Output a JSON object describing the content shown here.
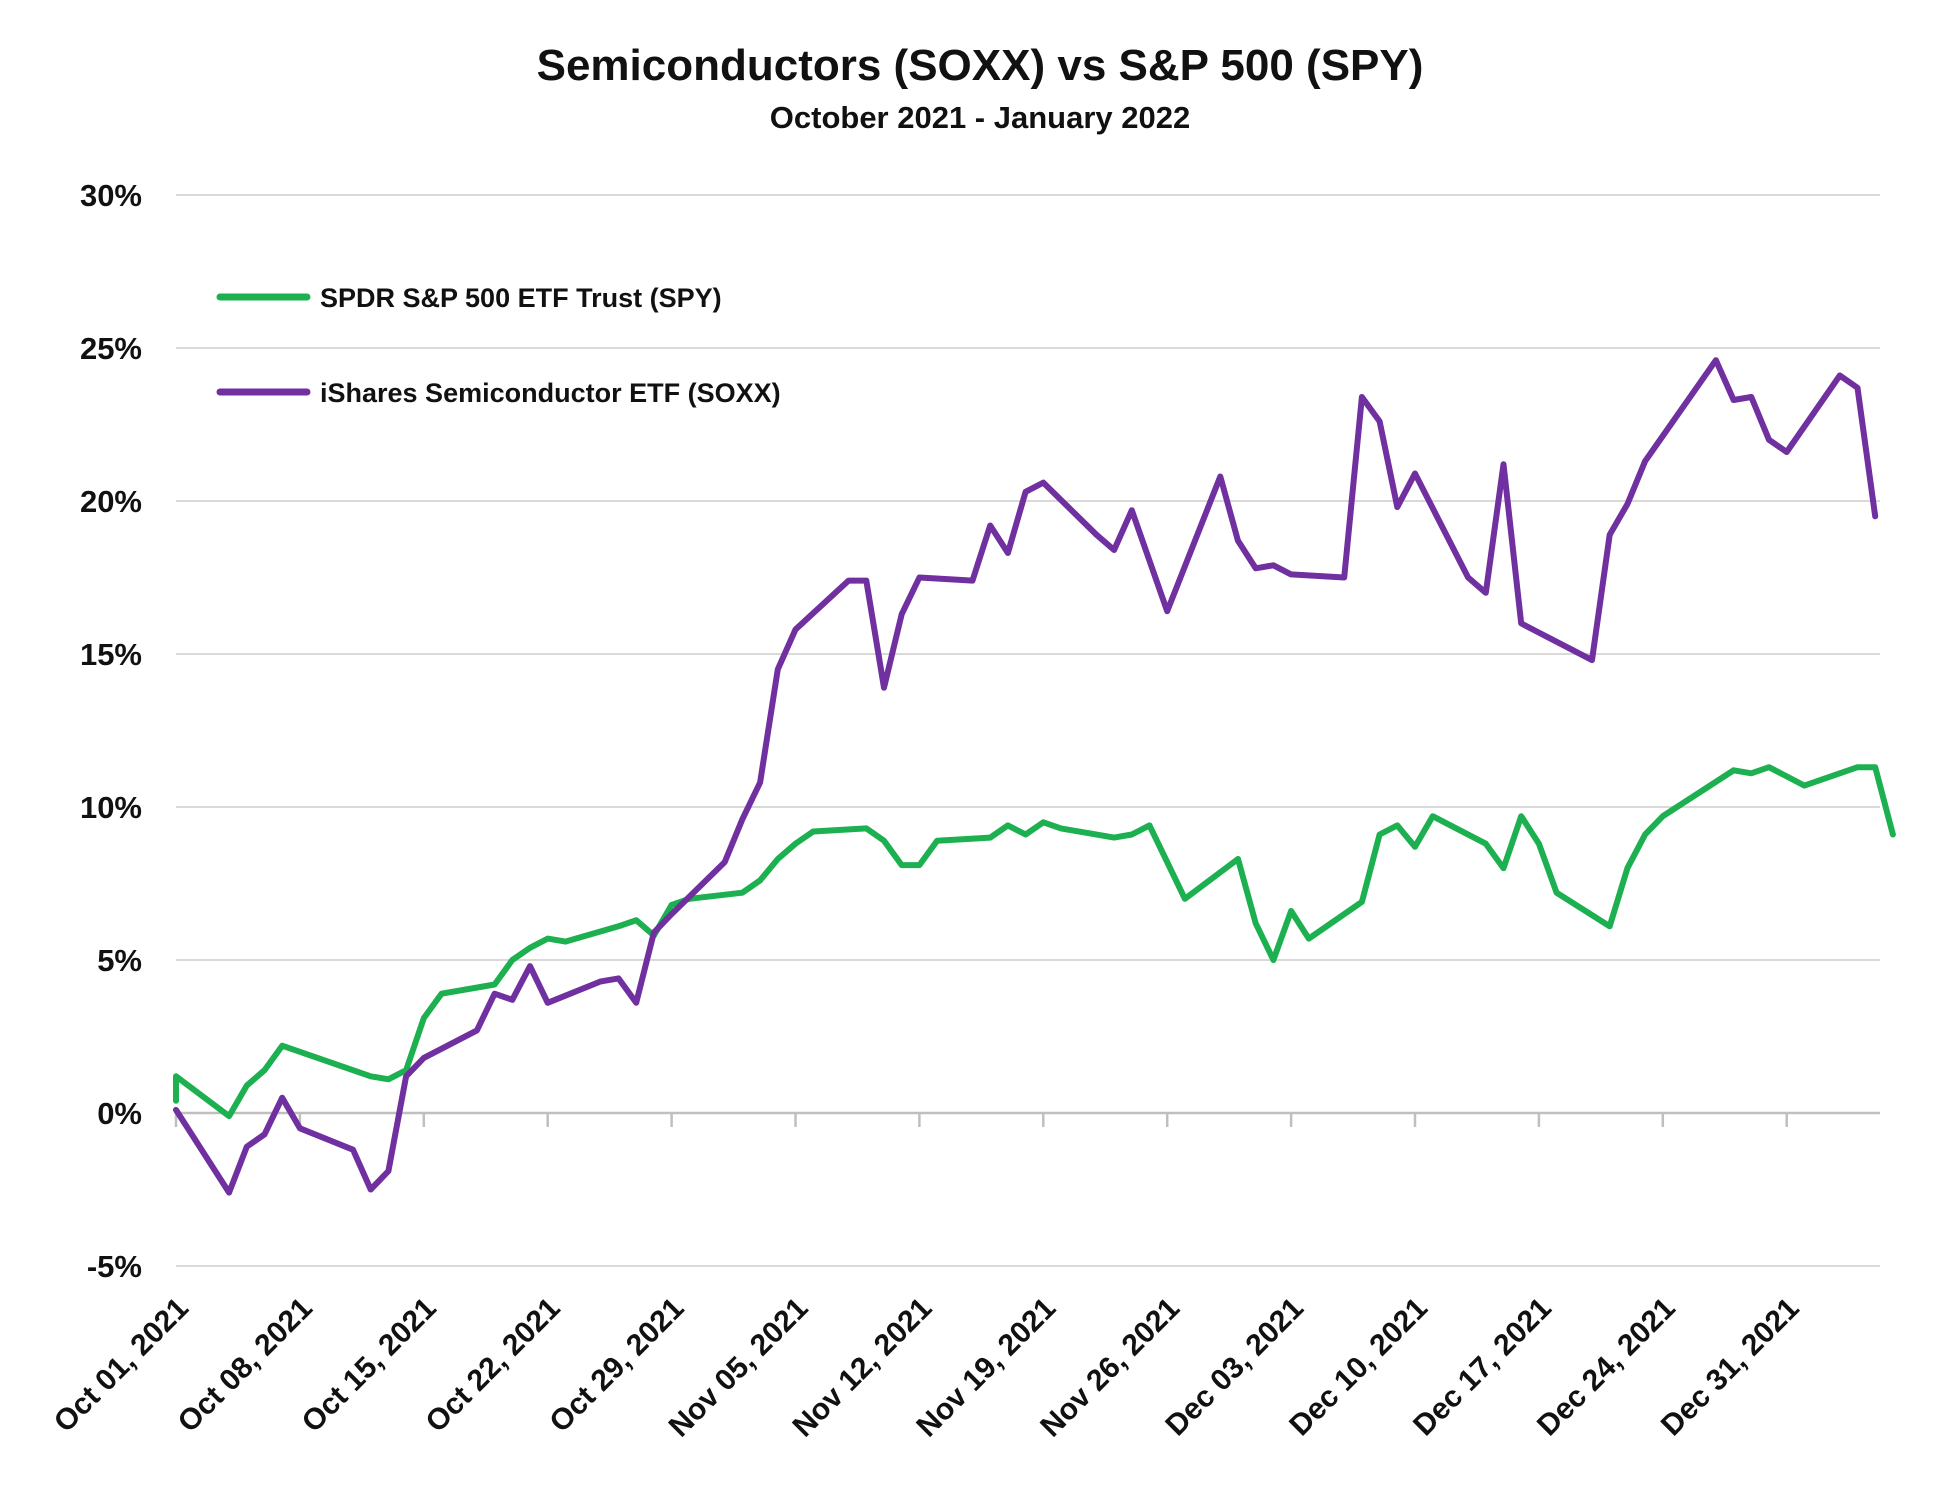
{
  "chart_data": {
    "type": "line",
    "title": "Semiconductors (SOXX) vs S&P 500 (SPY)",
    "subtitle": "October 2021 - January 2022",
    "xlabel": "",
    "ylabel": "",
    "ylim": [
      -5,
      30
    ],
    "yticks": [
      -5,
      0,
      5,
      10,
      15,
      20,
      25,
      30
    ],
    "ytick_labels": [
      "-5%",
      "0%",
      "5%",
      "10%",
      "15%",
      "20%",
      "25%",
      "30%"
    ],
    "x_range": [
      "2021-10-01",
      "2022-01-05"
    ],
    "xticks": [
      "2021-10-01",
      "2021-10-08",
      "2021-10-15",
      "2021-10-22",
      "2021-10-29",
      "2021-11-05",
      "2021-11-12",
      "2021-11-19",
      "2021-11-26",
      "2021-12-03",
      "2021-12-10",
      "2021-12-17",
      "2021-12-24",
      "2021-12-31"
    ],
    "xtick_labels": [
      "Oct 01, 2021",
      "Oct 08, 2021",
      "Oct 15, 2021",
      "Oct 22, 2021",
      "Oct 29, 2021",
      "Nov 05, 2021",
      "Nov 12, 2021",
      "Nov 19, 2021",
      "Nov 26, 2021",
      "Dec 03, 2021",
      "Dec 10, 2021",
      "Dec 17, 2021",
      "Dec 24, 2021",
      "Dec 31, 2021"
    ],
    "grid": "horizontal",
    "legend_position": "top-left",
    "series": [
      {
        "name": "SPDR S&P 500 ETF Trust (SPY)",
        "color": "#1db050",
        "points": [
          [
            "2021-10-01",
            0.4
          ],
          [
            "2021-10-01",
            1.2
          ],
          [
            "2021-10-04",
            -0.1
          ],
          [
            "2021-10-05",
            0.9
          ],
          [
            "2021-10-06",
            1.4
          ],
          [
            "2021-10-07",
            2.2
          ],
          [
            "2021-10-08",
            2.0
          ],
          [
            "2021-10-11",
            1.4
          ],
          [
            "2021-10-12",
            1.2
          ],
          [
            "2021-10-13",
            1.1
          ],
          [
            "2021-10-14",
            1.4
          ],
          [
            "2021-10-15",
            3.1
          ],
          [
            "2021-10-16",
            3.9
          ],
          [
            "2021-10-19",
            4.2
          ],
          [
            "2021-10-20",
            5.0
          ],
          [
            "2021-10-21",
            5.4
          ],
          [
            "2021-10-22",
            5.7
          ],
          [
            "2021-10-23",
            5.6
          ],
          [
            "2021-10-26",
            6.1
          ],
          [
            "2021-10-27",
            6.3
          ],
          [
            "2021-10-28",
            5.8
          ],
          [
            "2021-10-29",
            6.8
          ],
          [
            "2021-10-30",
            7.0
          ],
          [
            "2021-11-02",
            7.2
          ],
          [
            "2021-11-03",
            7.6
          ],
          [
            "2021-11-04",
            8.3
          ],
          [
            "2021-11-05",
            8.8
          ],
          [
            "2021-11-06",
            9.2
          ],
          [
            "2021-11-09",
            9.3
          ],
          [
            "2021-11-10",
            8.9
          ],
          [
            "2021-11-11",
            8.1
          ],
          [
            "2021-11-12",
            8.1
          ],
          [
            "2021-11-13",
            8.9
          ],
          [
            "2021-11-16",
            9.0
          ],
          [
            "2021-11-17",
            9.4
          ],
          [
            "2021-11-18",
            9.1
          ],
          [
            "2021-11-19",
            9.5
          ],
          [
            "2021-11-20",
            9.3
          ],
          [
            "2021-11-23",
            9.0
          ],
          [
            "2021-11-24",
            9.1
          ],
          [
            "2021-11-25",
            9.4
          ],
          [
            "2021-11-27",
            7.0
          ],
          [
            "2021-11-30",
            8.3
          ],
          [
            "2021-12-01",
            6.2
          ],
          [
            "2021-12-02",
            5.0
          ],
          [
            "2021-12-03",
            6.6
          ],
          [
            "2021-12-04",
            5.7
          ],
          [
            "2021-12-07",
            6.9
          ],
          [
            "2021-12-08",
            9.1
          ],
          [
            "2021-12-09",
            9.4
          ],
          [
            "2021-12-10",
            8.7
          ],
          [
            "2021-12-11",
            9.7
          ],
          [
            "2021-12-14",
            8.8
          ],
          [
            "2021-12-15",
            8.0
          ],
          [
            "2021-12-16",
            9.7
          ],
          [
            "2021-12-17",
            8.8
          ],
          [
            "2021-12-18",
            7.2
          ],
          [
            "2021-12-21",
            6.1
          ],
          [
            "2021-12-22",
            8.0
          ],
          [
            "2021-12-23",
            9.1
          ],
          [
            "2021-12-24",
            9.7
          ],
          [
            "2021-12-28",
            11.2
          ],
          [
            "2021-12-29",
            11.1
          ],
          [
            "2021-12-30",
            11.3
          ],
          [
            "2021-12-31",
            11.0
          ],
          [
            "2022-01-01",
            10.7
          ],
          [
            "2022-01-04",
            11.3
          ],
          [
            "2022-01-05",
            11.3
          ],
          [
            "2022-01-06",
            9.1
          ]
        ]
      },
      {
        "name": "iShares Semiconductor ETF (SOXX)",
        "color": "#7030a0",
        "points": [
          [
            "2021-10-01",
            0.1
          ],
          [
            "2021-10-01",
            0.1
          ],
          [
            "2021-10-04",
            -2.6
          ],
          [
            "2021-10-05",
            -1.1
          ],
          [
            "2021-10-06",
            -0.7
          ],
          [
            "2021-10-07",
            0.5
          ],
          [
            "2021-10-08",
            -0.5
          ],
          [
            "2021-10-11",
            -1.2
          ],
          [
            "2021-10-12",
            -2.5
          ],
          [
            "2021-10-13",
            -1.9
          ],
          [
            "2021-10-14",
            1.2
          ],
          [
            "2021-10-15",
            1.8
          ],
          [
            "2021-10-18",
            2.7
          ],
          [
            "2021-10-19",
            3.9
          ],
          [
            "2021-10-20",
            3.7
          ],
          [
            "2021-10-21",
            4.8
          ],
          [
            "2021-10-22",
            3.6
          ],
          [
            "2021-10-25",
            4.3
          ],
          [
            "2021-10-26",
            4.4
          ],
          [
            "2021-10-27",
            3.6
          ],
          [
            "2021-10-28",
            5.9
          ],
          [
            "2021-10-29",
            6.5
          ],
          [
            "2021-11-01",
            8.2
          ],
          [
            "2021-11-02",
            9.6
          ],
          [
            "2021-11-03",
            10.8
          ],
          [
            "2021-11-04",
            14.5
          ],
          [
            "2021-11-05",
            15.8
          ],
          [
            "2021-11-08",
            17.4
          ],
          [
            "2021-11-09",
            17.4
          ],
          [
            "2021-11-10",
            13.9
          ],
          [
            "2021-11-11",
            16.3
          ],
          [
            "2021-11-12",
            17.5
          ],
          [
            "2021-11-15",
            17.4
          ],
          [
            "2021-11-16",
            19.2
          ],
          [
            "2021-11-17",
            18.3
          ],
          [
            "2021-11-18",
            20.3
          ],
          [
            "2021-11-19",
            20.6
          ],
          [
            "2021-11-22",
            18.9
          ],
          [
            "2021-11-23",
            18.4
          ],
          [
            "2021-11-24",
            19.7
          ],
          [
            "2021-11-26",
            16.4
          ],
          [
            "2021-11-29",
            20.8
          ],
          [
            "2021-11-30",
            18.7
          ],
          [
            "2021-12-01",
            17.8
          ],
          [
            "2021-12-02",
            17.9
          ],
          [
            "2021-12-03",
            17.6
          ],
          [
            "2021-12-06",
            17.5
          ],
          [
            "2021-12-07",
            23.4
          ],
          [
            "2021-12-08",
            22.6
          ],
          [
            "2021-12-09",
            19.8
          ],
          [
            "2021-12-10",
            20.9
          ],
          [
            "2021-12-13",
            17.5
          ],
          [
            "2021-12-14",
            17.0
          ],
          [
            "2021-12-15",
            21.2
          ],
          [
            "2021-12-16",
            16.0
          ],
          [
            "2021-12-17",
            15.7
          ],
          [
            "2021-12-20",
            14.8
          ],
          [
            "2021-12-21",
            18.9
          ],
          [
            "2021-12-22",
            19.9
          ],
          [
            "2021-12-23",
            21.3
          ],
          [
            "2021-12-27",
            24.6
          ],
          [
            "2021-12-28",
            23.3
          ],
          [
            "2021-12-29",
            23.4
          ],
          [
            "2021-12-30",
            22.0
          ],
          [
            "2021-12-31",
            21.6
          ],
          [
            "2022-01-03",
            24.1
          ],
          [
            "2022-01-04",
            23.7
          ],
          [
            "2022-01-05",
            19.5
          ]
        ]
      }
    ]
  }
}
